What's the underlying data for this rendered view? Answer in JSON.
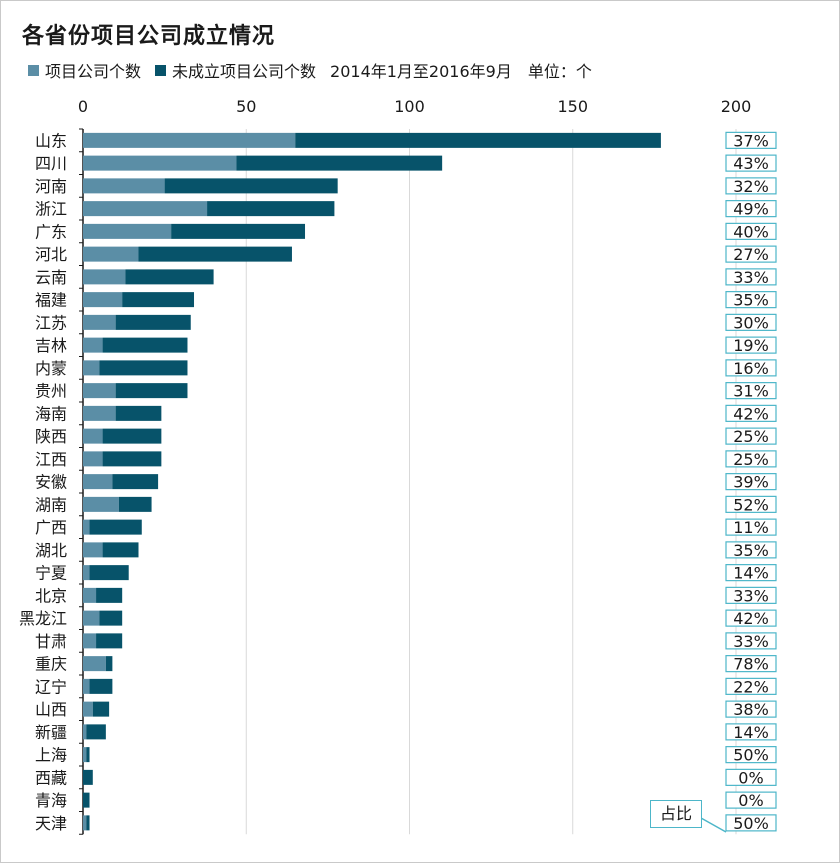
{
  "title": "各省份项目公司成立情况",
  "legend": {
    "series1": "项目公司个数",
    "series2": "未成立项目公司个数",
    "period": "2014年1月至2016年9月",
    "unit": "单位：个"
  },
  "callout_label": "占比",
  "colors": {
    "series1": "#5b8ea6",
    "series2": "#07536a",
    "pct_border": "#4db6c9",
    "grid": "#d9d9d9",
    "axis": "#1a1a1a"
  },
  "chart_data": {
    "type": "bar",
    "orientation": "horizontal",
    "stacked": true,
    "xlim": [
      0,
      200
    ],
    "x_ticks": [
      0,
      50,
      100,
      150,
      200
    ],
    "grid": true,
    "legend_position": "top",
    "categories": [
      "山东",
      "四川",
      "河南",
      "浙江",
      "广东",
      "河北",
      "云南",
      "福建",
      "江苏",
      "吉林",
      "内蒙",
      "贵州",
      "海南",
      "陕西",
      "江西",
      "安徽",
      "湖南",
      "广西",
      "湖北",
      "宁夏",
      "北京",
      "黑龙江",
      "甘肃",
      "重庆",
      "辽宁",
      "山西",
      "新疆",
      "上海",
      "西藏",
      "青海",
      "天津"
    ],
    "series": [
      {
        "name": "项目公司个数",
        "values": [
          65,
          47,
          25,
          38,
          27,
          17,
          13,
          12,
          10,
          6,
          5,
          10,
          10,
          6,
          6,
          9,
          11,
          2,
          6,
          2,
          4,
          5,
          4,
          7,
          2,
          3,
          1,
          1,
          0,
          0,
          1
        ]
      },
      {
        "name": "未成立项目公司个数",
        "values": [
          112,
          63,
          53,
          39,
          41,
          47,
          27,
          22,
          23,
          26,
          27,
          22,
          14,
          18,
          18,
          14,
          10,
          16,
          11,
          12,
          8,
          7,
          8,
          2,
          7,
          5,
          6,
          1,
          3,
          2,
          1
        ]
      }
    ],
    "percent_labels": [
      "37%",
      "43%",
      "32%",
      "49%",
      "40%",
      "27%",
      "33%",
      "35%",
      "30%",
      "19%",
      "16%",
      "31%",
      "42%",
      "25%",
      "25%",
      "39%",
      "52%",
      "11%",
      "35%",
      "14%",
      "33%",
      "42%",
      "33%",
      "78%",
      "22%",
      "38%",
      "14%",
      "50%",
      "0%",
      "0%",
      "50%"
    ]
  }
}
